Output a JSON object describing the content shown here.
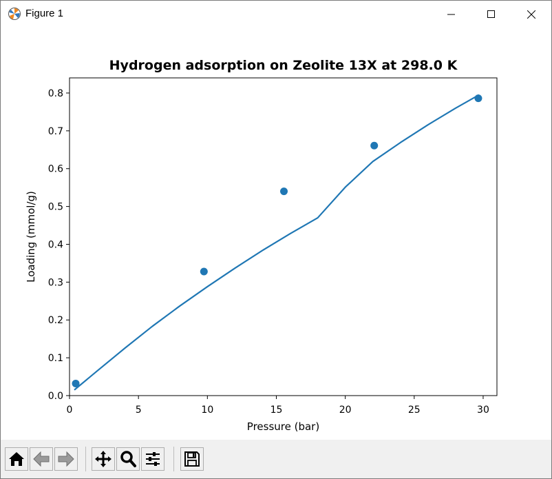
{
  "window": {
    "title": "Figure 1",
    "icon": "matplotlib-icon",
    "controls": [
      "minimize-icon",
      "maximize-icon",
      "close-icon"
    ]
  },
  "toolbar": {
    "buttons": [
      "home-icon",
      "back-arrow-icon",
      "forward-arrow-icon",
      "pan-icon",
      "zoom-icon",
      "configure-subplots-icon",
      "save-icon"
    ]
  },
  "chart_data": {
    "type": "scatter",
    "title": "Hydrogen adsorption on Zeolite 13X at 298.0 K",
    "xlabel": "Pressure (bar)",
    "ylabel": "Loading (mmol/g)",
    "xlim": [
      0,
      31
    ],
    "ylim": [
      0,
      0.84
    ],
    "xticks": [
      0,
      5,
      10,
      15,
      20,
      25,
      30
    ],
    "xtick_labels": [
      "0",
      "5",
      "10",
      "15",
      "20",
      "25",
      "30"
    ],
    "yticks": [
      0.0,
      0.1,
      0.2,
      0.3,
      0.4,
      0.5,
      0.6,
      0.7,
      0.8
    ],
    "ytick_labels": [
      "0.0",
      "0.1",
      "0.2",
      "0.3",
      "0.4",
      "0.5",
      "0.6",
      "0.7",
      "0.8"
    ],
    "grid": false,
    "legend": false,
    "color": "#1f77b4",
    "series": [
      {
        "kind": "points",
        "x": [
          0.45,
          9.75,
          15.55,
          22.1,
          29.65
        ],
        "y": [
          0.032,
          0.328,
          0.54,
          0.661,
          0.786
        ]
      },
      {
        "kind": "line",
        "x": [
          0.35,
          2,
          4,
          6,
          8,
          10,
          12,
          14,
          16,
          18,
          20,
          22,
          24,
          26,
          28,
          29.7
        ],
        "y": [
          0.015,
          0.065,
          0.125,
          0.183,
          0.237,
          0.288,
          0.337,
          0.384,
          0.428,
          0.47,
          0.551,
          0.619,
          0.669,
          0.716,
          0.76,
          0.795
        ]
      }
    ]
  }
}
